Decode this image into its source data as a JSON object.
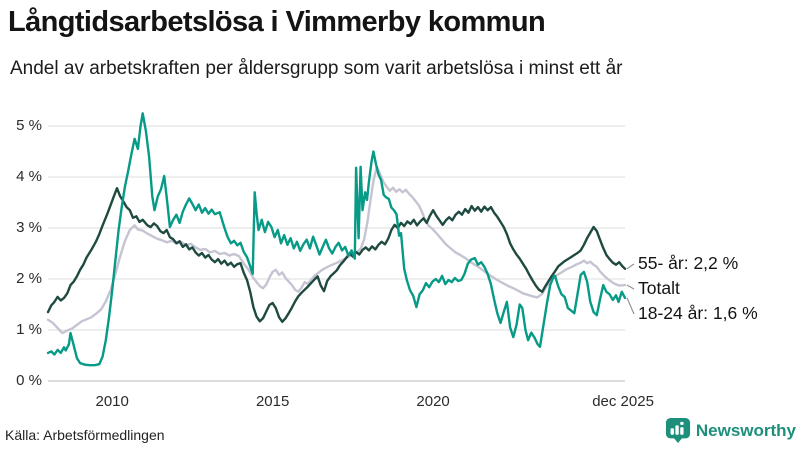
{
  "header": {
    "title": "Långtidsarbetslösa i Vimmerby kommun",
    "subtitle": "Andel av arbetskraften per åldersgrupp som varit arbetslösa i minst ett år"
  },
  "footer": {
    "source": "Källa: Arbetsförmedlingen",
    "brand": "Newsworthy"
  },
  "colors": {
    "series_55": "#1f4a41",
    "series_total": "#c6c4d2",
    "series_18_24": "#069a87",
    "grid": "#e3e3e3",
    "baseline": "#c8c8c8",
    "leader": "#8f8f8f",
    "brand_teal": "#1d8f7b"
  },
  "chart_data": {
    "type": "line",
    "title": "Långtidsarbetslösa i Vimmerby kommun",
    "subtitle": "Andel av arbetskraften per åldersgrupp som varit arbetslösa i minst ett år",
    "unit": "%",
    "grid": "horizontal",
    "legend_position": "right-end-labels",
    "x_axis": {
      "range": [
        2008.0,
        2025.98
      ],
      "ticks": [
        {
          "label": "2010",
          "year": 2010
        },
        {
          "label": "2015",
          "year": 2015
        },
        {
          "label": "2020",
          "year": 2020
        },
        {
          "label": "dec 2025",
          "year": 2025.92
        }
      ]
    },
    "y_axis": {
      "range": [
        0,
        5
      ],
      "ticks": [
        {
          "label": "0 %",
          "value": 0
        },
        {
          "label": "1 %",
          "value": 1
        },
        {
          "label": "2 %",
          "value": 2
        },
        {
          "label": "3 %",
          "value": 3
        },
        {
          "label": "4 %",
          "value": 4
        },
        {
          "label": "5 %",
          "value": 5
        }
      ]
    },
    "series": [
      {
        "name": "55- år",
        "label": "55- år: 2,2 %",
        "last_value": "2,2 %",
        "color": "#1f4a41",
        "points": [
          2008.0,
          1.35,
          2008.1,
          1.48,
          2008.2,
          1.55,
          2008.3,
          1.65,
          2008.4,
          1.58,
          2008.5,
          1.63,
          2008.6,
          1.72,
          2008.7,
          1.88,
          2008.8,
          1.95,
          2008.9,
          2.05,
          2009.0,
          2.18,
          2009.1,
          2.28,
          2009.2,
          2.42,
          2009.35,
          2.57,
          2009.5,
          2.74,
          2009.6,
          2.88,
          2009.7,
          3.05,
          2009.85,
          3.28,
          2009.95,
          3.45,
          2010.05,
          3.62,
          2010.15,
          3.78,
          2010.25,
          3.62,
          2010.35,
          3.52,
          2010.45,
          3.41,
          2010.55,
          3.35,
          2010.65,
          3.2,
          2010.75,
          3.23,
          2010.85,
          3.12,
          2010.95,
          3.16,
          2011.1,
          3.05,
          2011.2,
          3.02,
          2011.3,
          3.09,
          2011.4,
          3.04,
          2011.5,
          2.94,
          2011.6,
          2.9,
          2011.7,
          2.96,
          2011.8,
          2.82,
          2011.9,
          2.78,
          2012.0,
          2.7,
          2012.1,
          2.74,
          2012.2,
          2.63,
          2012.3,
          2.68,
          2012.4,
          2.58,
          2012.5,
          2.62,
          2012.6,
          2.52,
          2012.7,
          2.46,
          2012.8,
          2.51,
          2012.9,
          2.42,
          2013.0,
          2.47,
          2013.1,
          2.38,
          2013.2,
          2.33,
          2013.3,
          2.39,
          2013.4,
          2.3,
          2013.5,
          2.36,
          2013.6,
          2.27,
          2013.7,
          2.32,
          2013.8,
          2.24,
          2013.9,
          2.29,
          2014.0,
          2.31,
          2014.1,
          2.12,
          2014.2,
          1.98,
          2014.3,
          1.75,
          2014.4,
          1.45,
          2014.5,
          1.26,
          2014.6,
          1.17,
          2014.7,
          1.23,
          2014.8,
          1.36,
          2014.9,
          1.49,
          2015.0,
          1.53,
          2015.1,
          1.43,
          2015.2,
          1.25,
          2015.3,
          1.16,
          2015.4,
          1.23,
          2015.5,
          1.33,
          2015.6,
          1.44,
          2015.7,
          1.56,
          2015.8,
          1.66,
          2015.9,
          1.73,
          2016.0,
          1.79,
          2016.1,
          1.85,
          2016.2,
          1.92,
          2016.3,
          1.99,
          2016.4,
          2.05,
          2016.5,
          1.87,
          2016.6,
          1.76,
          2016.7,
          1.96,
          2016.8,
          2.05,
          2016.9,
          2.11,
          2017.0,
          2.17,
          2017.1,
          2.27,
          2017.2,
          2.34,
          2017.3,
          2.42,
          2017.4,
          2.5,
          2017.5,
          2.44,
          2017.6,
          2.53,
          2017.7,
          2.48,
          2017.8,
          2.57,
          2017.9,
          2.62,
          2018.0,
          2.56,
          2018.1,
          2.64,
          2018.2,
          2.58,
          2018.3,
          2.67,
          2018.4,
          2.73,
          2018.5,
          2.68,
          2018.6,
          2.79,
          2018.7,
          2.96,
          2018.8,
          3.06,
          2018.9,
          3.0,
          2019.0,
          3.1,
          2019.1,
          3.04,
          2019.2,
          3.13,
          2019.3,
          3.08,
          2019.4,
          3.16,
          2019.5,
          3.05,
          2019.6,
          3.13,
          2019.7,
          3.19,
          2019.8,
          3.1,
          2019.9,
          3.24,
          2020.0,
          3.35,
          2020.1,
          3.24,
          2020.2,
          3.15,
          2020.3,
          3.06,
          2020.4,
          3.15,
          2020.5,
          3.21,
          2020.6,
          3.15,
          2020.7,
          3.26,
          2020.8,
          3.32,
          2020.9,
          3.26,
          2021.0,
          3.37,
          2021.1,
          3.3,
          2021.2,
          3.43,
          2021.3,
          3.34,
          2021.4,
          3.41,
          2021.5,
          3.32,
          2021.6,
          3.42,
          2021.7,
          3.35,
          2021.8,
          3.41,
          2021.9,
          3.3,
          2022.0,
          3.22,
          2022.1,
          3.12,
          2022.2,
          3.02,
          2022.3,
          2.88,
          2022.4,
          2.7,
          2022.5,
          2.58,
          2022.6,
          2.48,
          2022.7,
          2.4,
          2022.8,
          2.3,
          2022.9,
          2.2,
          2023.0,
          2.08,
          2023.1,
          1.97,
          2023.2,
          1.87,
          2023.3,
          1.79,
          2023.4,
          1.75,
          2023.5,
          1.86,
          2023.6,
          1.96,
          2023.7,
          2.06,
          2023.8,
          2.15,
          2023.9,
          2.25,
          2024.0,
          2.3,
          2024.1,
          2.35,
          2024.2,
          2.39,
          2024.3,
          2.43,
          2024.4,
          2.47,
          2024.5,
          2.51,
          2024.6,
          2.56,
          2024.7,
          2.67,
          2024.8,
          2.8,
          2024.9,
          2.91,
          2025.0,
          3.02,
          2025.1,
          2.94,
          2025.2,
          2.77,
          2025.3,
          2.61,
          2025.4,
          2.47,
          2025.5,
          2.39,
          2025.6,
          2.32,
          2025.7,
          2.28,
          2025.8,
          2.33,
          2025.9,
          2.25,
          2025.98,
          2.2
        ]
      },
      {
        "name": "Totalt",
        "label": "Totalt",
        "last_value": "1,9 %",
        "color": "#c6c4d2",
        "points": [
          2008.0,
          1.2,
          2008.15,
          1.14,
          2008.3,
          1.04,
          2008.45,
          0.94,
          2008.6,
          0.99,
          2008.75,
          1.03,
          2008.9,
          1.1,
          2009.05,
          1.17,
          2009.2,
          1.21,
          2009.35,
          1.25,
          2009.5,
          1.32,
          2009.65,
          1.4,
          2009.8,
          1.56,
          2009.95,
          1.78,
          2010.1,
          2.1,
          2010.25,
          2.45,
          2010.4,
          2.75,
          2010.55,
          2.96,
          2010.7,
          3.05,
          2010.8,
          2.97,
          2010.95,
          2.95,
          2011.1,
          2.89,
          2011.25,
          2.84,
          2011.4,
          2.79,
          2011.55,
          2.76,
          2011.7,
          2.72,
          2011.85,
          2.75,
          2012.0,
          2.7,
          2012.15,
          2.73,
          2012.3,
          2.66,
          2012.45,
          2.69,
          2012.6,
          2.62,
          2012.75,
          2.57,
          2012.9,
          2.59,
          2013.05,
          2.52,
          2013.2,
          2.55,
          2013.35,
          2.49,
          2013.5,
          2.51,
          2013.65,
          2.46,
          2013.8,
          2.49,
          2013.95,
          2.45,
          2014.1,
          2.3,
          2014.25,
          2.18,
          2014.4,
          2.02,
          2014.5,
          1.94,
          2014.6,
          1.86,
          2014.7,
          1.82,
          2014.8,
          1.89,
          2014.9,
          2.03,
          2015.0,
          2.14,
          2015.1,
          2.18,
          2015.2,
          2.08,
          2015.3,
          2.13,
          2015.4,
          2.02,
          2015.5,
          1.95,
          2015.6,
          1.88,
          2015.7,
          1.79,
          2015.8,
          1.75,
          2015.9,
          1.83,
          2016.0,
          1.94,
          2016.1,
          1.9,
          2016.2,
          1.99,
          2016.3,
          2.06,
          2016.4,
          2.11,
          2016.5,
          2.16,
          2016.6,
          2.2,
          2016.75,
          2.25,
          2016.9,
          2.29,
          2017.05,
          2.33,
          2017.2,
          2.38,
          2017.35,
          2.43,
          2017.5,
          2.48,
          2017.65,
          2.54,
          2017.75,
          2.6,
          2017.85,
          2.78,
          2017.95,
          3.1,
          2018.05,
          3.55,
          2018.15,
          3.95,
          2018.25,
          4.2,
          2018.35,
          4.06,
          2018.45,
          3.9,
          2018.55,
          3.81,
          2018.65,
          3.73,
          2018.75,
          3.79,
          2018.85,
          3.71,
          2018.95,
          3.76,
          2019.05,
          3.7,
          2019.15,
          3.75,
          2019.25,
          3.67,
          2019.35,
          3.61,
          2019.45,
          3.53,
          2019.55,
          3.45,
          2019.65,
          3.32,
          2019.75,
          3.16,
          2019.85,
          3.05,
          2019.95,
          3.0,
          2020.1,
          2.9,
          2020.25,
          2.79,
          2020.4,
          2.68,
          2020.55,
          2.6,
          2020.7,
          2.52,
          2020.85,
          2.47,
          2021.0,
          2.41,
          2021.15,
          2.34,
          2021.3,
          2.28,
          2021.45,
          2.22,
          2021.6,
          2.15,
          2021.75,
          2.08,
          2021.9,
          2.02,
          2022.05,
          1.96,
          2022.2,
          1.91,
          2022.35,
          1.86,
          2022.5,
          1.82,
          2022.65,
          1.77,
          2022.8,
          1.72,
          2022.95,
          1.69,
          2023.1,
          1.66,
          2023.25,
          1.64,
          2023.4,
          1.71,
          2023.55,
          1.87,
          2023.7,
          1.99,
          2023.85,
          2.07,
          2024.0,
          2.13,
          2024.15,
          2.19,
          2024.3,
          2.23,
          2024.45,
          2.28,
          2024.6,
          2.32,
          2024.7,
          2.36,
          2024.8,
          2.31,
          2024.9,
          2.34,
          2025.0,
          2.28,
          2025.1,
          2.24,
          2025.2,
          2.15,
          2025.35,
          2.05,
          2025.5,
          1.97,
          2025.65,
          1.91,
          2025.8,
          1.87,
          2025.98,
          1.88
        ]
      },
      {
        "name": "18-24 år",
        "label": "18-24 år: 1,6 %",
        "last_value": "1,6 %",
        "color": "#069a87",
        "points": [
          2008.0,
          0.55,
          2008.1,
          0.58,
          2008.2,
          0.52,
          2008.3,
          0.61,
          2008.4,
          0.55,
          2008.5,
          0.66,
          2008.55,
          0.6,
          2008.65,
          0.72,
          2008.7,
          0.94,
          2008.8,
          0.7,
          2008.9,
          0.45,
          2009.0,
          0.35,
          2009.15,
          0.32,
          2009.3,
          0.31,
          2009.45,
          0.31,
          2009.6,
          0.33,
          2009.7,
          0.48,
          2009.8,
          0.8,
          2009.9,
          1.25,
          2010.0,
          1.78,
          2010.1,
          2.37,
          2010.2,
          2.96,
          2010.3,
          3.42,
          2010.4,
          3.82,
          2010.5,
          4.12,
          2010.6,
          4.45,
          2010.7,
          4.75,
          2010.8,
          4.55,
          2010.88,
          4.98,
          2010.95,
          5.25,
          2011.05,
          4.9,
          2011.15,
          4.4,
          2011.25,
          3.62,
          2011.32,
          3.35,
          2011.42,
          3.62,
          2011.52,
          3.76,
          2011.62,
          4.02,
          2011.7,
          3.6,
          2011.8,
          3.02,
          2011.9,
          3.16,
          2012.0,
          3.26,
          2012.1,
          3.1,
          2012.2,
          3.32,
          2012.3,
          3.46,
          2012.4,
          3.58,
          2012.5,
          3.47,
          2012.6,
          3.35,
          2012.7,
          3.46,
          2012.8,
          3.3,
          2012.9,
          3.39,
          2013.0,
          3.28,
          2013.1,
          3.36,
          2013.2,
          3.27,
          2013.35,
          3.31,
          2013.5,
          3.0,
          2013.6,
          2.82,
          2013.7,
          2.7,
          2013.8,
          2.75,
          2013.9,
          2.66,
          2014.0,
          2.71,
          2014.1,
          2.53,
          2014.2,
          2.43,
          2014.3,
          2.25,
          2014.38,
          2.1,
          2014.44,
          3.7,
          2014.5,
          3.29,
          2014.56,
          2.96,
          2014.66,
          3.16,
          2014.76,
          2.92,
          2014.86,
          3.12,
          2014.96,
          3.02,
          2015.06,
          2.82,
          2015.16,
          2.96,
          2015.26,
          2.7,
          2015.36,
          2.86,
          2015.46,
          2.67,
          2015.56,
          2.8,
          2015.66,
          2.6,
          2015.76,
          2.73,
          2015.86,
          2.55,
          2015.96,
          2.68,
          2016.06,
          2.77,
          2016.16,
          2.6,
          2016.26,
          2.83,
          2016.36,
          2.66,
          2016.46,
          2.48,
          2016.56,
          2.63,
          2016.66,
          2.77,
          2016.76,
          2.6,
          2016.86,
          2.5,
          2016.96,
          2.63,
          2017.06,
          2.71,
          2017.16,
          2.56,
          2017.26,
          2.63,
          2017.36,
          2.46,
          2017.46,
          2.56,
          2017.56,
          2.4,
          2017.6,
          4.18,
          2017.68,
          2.8,
          2017.74,
          4.2,
          2017.8,
          3.35,
          2017.88,
          3.7,
          2017.94,
          3.55,
          2018.0,
          3.9,
          2018.08,
          4.3,
          2018.14,
          4.5,
          2018.22,
          4.25,
          2018.3,
          4.05,
          2018.38,
          3.94,
          2018.46,
          3.65,
          2018.54,
          3.6,
          2018.62,
          3.57,
          2018.7,
          3.4,
          2018.78,
          3.35,
          2018.86,
          3.27,
          2018.94,
          2.85,
          2019.0,
          2.9,
          2019.1,
          2.2,
          2019.18,
          1.98,
          2019.28,
          1.78,
          2019.38,
          1.67,
          2019.48,
          1.45,
          2019.58,
          1.7,
          2019.68,
          1.78,
          2019.78,
          1.92,
          2019.88,
          1.84,
          2019.98,
          1.95,
          2020.08,
          2.0,
          2020.18,
          1.94,
          2020.28,
          2.06,
          2020.38,
          1.9,
          2020.48,
          1.98,
          2020.58,
          1.94,
          2020.68,
          2.02,
          2020.78,
          1.96,
          2020.88,
          1.98,
          2020.98,
          2.1,
          2021.08,
          2.3,
          2021.18,
          2.38,
          2021.3,
          2.41,
          2021.4,
          2.28,
          2021.5,
          2.33,
          2021.6,
          2.24,
          2021.7,
          2.1,
          2021.8,
          1.9,
          2021.9,
          1.6,
          2022.0,
          1.33,
          2022.1,
          1.14,
          2022.2,
          1.35,
          2022.3,
          1.55,
          2022.4,
          1.05,
          2022.5,
          0.86,
          2022.6,
          1.1,
          2022.7,
          1.5,
          2022.78,
          1.43,
          2022.88,
          1.0,
          2022.96,
          0.8,
          2023.06,
          0.95,
          2023.16,
          0.85,
          2023.26,
          0.72,
          2023.33,
          0.67,
          2023.45,
          1.14,
          2023.55,
          1.53,
          2023.65,
          1.88,
          2023.75,
          2.04,
          2023.8,
          2.06,
          2023.9,
          1.85,
          2024.0,
          1.7,
          2024.1,
          1.65,
          2024.2,
          1.43,
          2024.3,
          1.38,
          2024.4,
          1.33,
          2024.5,
          1.7,
          2024.6,
          2.08,
          2024.7,
          2.14,
          2024.8,
          1.95,
          2024.9,
          1.55,
          2025.0,
          1.35,
          2025.1,
          1.29,
          2025.2,
          1.6,
          2025.3,
          1.88,
          2025.4,
          1.75,
          2025.5,
          1.7,
          2025.6,
          1.59,
          2025.7,
          1.68,
          2025.78,
          1.55,
          2025.88,
          1.75,
          2025.98,
          1.63
        ]
      }
    ]
  }
}
